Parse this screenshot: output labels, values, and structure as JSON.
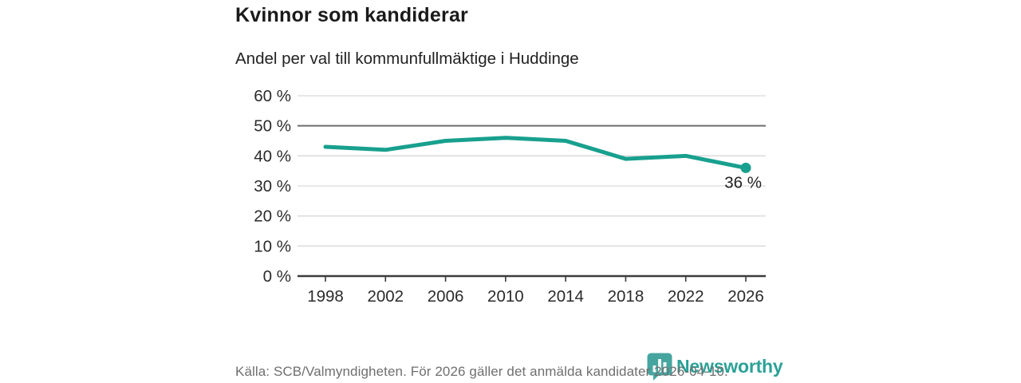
{
  "header": {
    "title": "Kvinnor som kandiderar",
    "subtitle": "Andel per val till kommunfullmäktige i Huddinge"
  },
  "chart_data": {
    "type": "line",
    "title": "Kvinnor som kandiderar",
    "subtitle": "Andel per val till kommunfullmäktige i Huddinge",
    "categories": [
      1998,
      2002,
      2006,
      2010,
      2014,
      2018,
      2022,
      2026
    ],
    "values": [
      43,
      42,
      45,
      46,
      45,
      39,
      40,
      36
    ],
    "unit": "%",
    "ylim": [
      0,
      60
    ],
    "y_ticks": [
      0,
      10,
      20,
      30,
      40,
      50,
      60
    ],
    "y_tick_suffix": " %",
    "grid": "horizontal",
    "emphasized_gridline": 50,
    "last_point_label": "36 %",
    "legend": "none"
  },
  "footer": {
    "source": "Källa: SCB/Valmyndigheten. För 2026 gäller det anmälda kandidater 2026-04-10.",
    "logo_text": "Newsworthy"
  },
  "colors": {
    "accent_teal": "#18a08e",
    "logo_teal": "#46a59f",
    "logo_text_teal": "#2ba197",
    "grid_light": "#d9d9d9",
    "grid_dark": "#6e6e6e",
    "axis_dark": "#3c3c3c",
    "tick_text": "#2b2b2b",
    "title_text": "#1a1a1a",
    "source_text": "#6f6f6f"
  }
}
